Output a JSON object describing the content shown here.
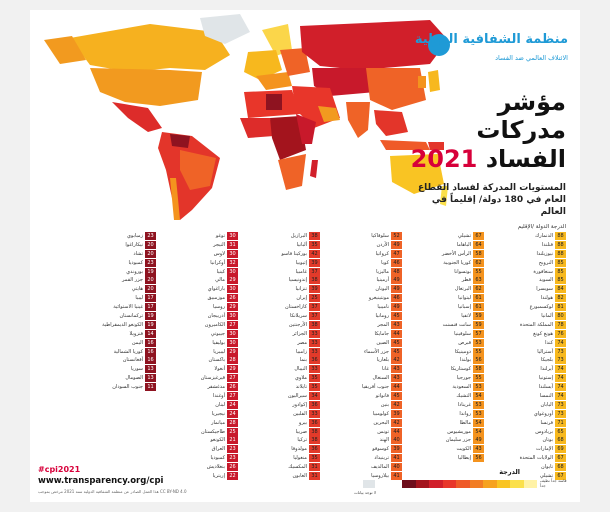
{
  "org": {
    "name": "منظمة الشفافية الدولية",
    "tagline": "الائتلاف العالمي ضد الفساد"
  },
  "title": {
    "line1": "مؤشر",
    "line2": "مدركات",
    "line3_word": "الفساد",
    "year": "2021"
  },
  "subtitle": "المستويات المدركة لفساد القطاع العام في 180 دولة/ إقليماً في العالم",
  "columns_header": "الدرجة   الدولة /الإقليم",
  "hashtag": "#cpi2021",
  "url": "www.transparency.org/cpi",
  "license": "هذا العمل الصادر عن منظمة الشفافية الدولية سنة 2021 مرخص بموجب CC BY-ND 4.0",
  "legend": {
    "title": "الدرجة",
    "left_label": "لا توجد بيانات",
    "right_label": "فاسد جداً   نظيف جداً",
    "colors": [
      "#6e0e1c",
      "#a3141d",
      "#d11f2a",
      "#e8362a",
      "#ef5a28",
      "#f27d24",
      "#f6a21f",
      "#f9c423",
      "#fbe04b",
      "#fff2a6"
    ]
  },
  "score_colors": {
    "high": "#f7b81e",
    "mid_high": "#f4931e",
    "mid": "#ef6327",
    "mid_low": "#e23a2a",
    "low": "#c8192b",
    "very_low": "#8e1320"
  },
  "columns": [
    {
      "tier": "high",
      "rows": [
        {
          "name": "الدنمارك",
          "score": "88"
        },
        {
          "name": "فنلندا",
          "score": "88"
        },
        {
          "name": "نيوزيلندا",
          "score": "88"
        },
        {
          "name": "النرويج",
          "score": "85"
        },
        {
          "name": "سنغافورة",
          "score": "85"
        },
        {
          "name": "السويد",
          "score": "85"
        },
        {
          "name": "سويسرا",
          "score": "84"
        },
        {
          "name": "هولندا",
          "score": "82"
        },
        {
          "name": "لوكسمبورغ",
          "score": "81"
        },
        {
          "name": "ألمانيا",
          "score": "80"
        },
        {
          "name": "المملكة المتحدة",
          "score": "78"
        },
        {
          "name": "هونغ كونغ",
          "score": "76"
        },
        {
          "name": "كندا",
          "score": "74"
        },
        {
          "name": "أستراليا",
          "score": "73"
        },
        {
          "name": "بلجيكا",
          "score": "73"
        },
        {
          "name": "آيرلندا",
          "score": "74"
        },
        {
          "name": "إستونيا",
          "score": "74"
        },
        {
          "name": "آيسلندا",
          "score": "74"
        },
        {
          "name": "النمسا",
          "score": "74"
        },
        {
          "name": "اليابان",
          "score": "73"
        },
        {
          "name": "أوروغواي",
          "score": "73"
        },
        {
          "name": "فرنسا",
          "score": "71"
        },
        {
          "name": "بربادوس",
          "score": "65"
        },
        {
          "name": "بوتان",
          "score": "68"
        },
        {
          "name": "الإمارات",
          "score": "69"
        },
        {
          "name": "الولايات المتحدة",
          "score": "67"
        },
        {
          "name": "تايوان",
          "score": "68"
        },
        {
          "name": "تشيلي",
          "score": "67"
        }
      ]
    },
    {
      "tier": "mid_high",
      "rows": [
        {
          "name": "تشيلي",
          "score": "67"
        },
        {
          "name": "الباهاما",
          "score": "64"
        },
        {
          "name": "الرأس الأخضر",
          "score": "58"
        },
        {
          "name": "كوريا الجنوبية",
          "score": "62"
        },
        {
          "name": "بوتسوانا",
          "score": "55"
        },
        {
          "name": "قطر",
          "score": "63"
        },
        {
          "name": "البرتغال",
          "score": "62"
        },
        {
          "name": "ليتوانيا",
          "score": "61"
        },
        {
          "name": "إسبانيا",
          "score": "61"
        },
        {
          "name": "لاتفيا",
          "score": "59"
        },
        {
          "name": "سانت فنسنت",
          "score": "59"
        },
        {
          "name": "سلوفينيا",
          "score": "57"
        },
        {
          "name": "قبرص",
          "score": "53"
        },
        {
          "name": "دومينيكا",
          "score": "55"
        },
        {
          "name": "بولندا",
          "score": "56"
        },
        {
          "name": "كوستاريكا",
          "score": "58"
        },
        {
          "name": "جورجيا",
          "score": "55"
        },
        {
          "name": "السعودية",
          "score": "53"
        },
        {
          "name": "التشيك",
          "score": "54"
        },
        {
          "name": "غرينادا",
          "score": "53"
        },
        {
          "name": "رواندا",
          "score": "53"
        },
        {
          "name": "مالطا",
          "score": "54"
        },
        {
          "name": "موريشيوس",
          "score": "54"
        },
        {
          "name": "جزر سليمان",
          "score": "49"
        },
        {
          "name": "الكويت",
          "score": "43"
        },
        {
          "name": "إيطاليا",
          "score": "56"
        }
      ]
    },
    {
      "tier": "mid",
      "rows": [
        {
          "name": "سلوفاكيا",
          "score": "52"
        },
        {
          "name": "الأردن",
          "score": "49"
        },
        {
          "name": "كرواتيا",
          "score": "47"
        },
        {
          "name": "كوبا",
          "score": "46"
        },
        {
          "name": "ماليزيا",
          "score": "48"
        },
        {
          "name": "أرمينيا",
          "score": "49"
        },
        {
          "name": "اليونان",
          "score": "49"
        },
        {
          "name": "مونتينيغرو",
          "score": "46"
        },
        {
          "name": "ناميبيا",
          "score": "49"
        },
        {
          "name": "رومانيا",
          "score": "45"
        },
        {
          "name": "المجر",
          "score": "43"
        },
        {
          "name": "جامايكا",
          "score": "44"
        },
        {
          "name": "الصين",
          "score": "45"
        },
        {
          "name": "جزر الأسماء",
          "score": "45"
        },
        {
          "name": "بلغاريا",
          "score": "42"
        },
        {
          "name": "غانا",
          "score": "43"
        },
        {
          "name": "السنغال",
          "score": "43"
        },
        {
          "name": "جنوب أفريقيا",
          "score": "44"
        },
        {
          "name": "فانواتو",
          "score": "45"
        },
        {
          "name": "بنين",
          "score": "42"
        },
        {
          "name": "كولومبيا",
          "score": "39"
        },
        {
          "name": "البحرين",
          "score": "42"
        },
        {
          "name": "تونس",
          "score": "44"
        },
        {
          "name": "الهند",
          "score": "40"
        },
        {
          "name": "كوسوفو",
          "score": "39"
        },
        {
          "name": "ترينيداد",
          "score": "41"
        },
        {
          "name": "المالديف",
          "score": "40"
        },
        {
          "name": "بيلاروسيا",
          "score": "41"
        }
      ]
    },
    {
      "tier": "mid_low",
      "rows": [
        {
          "name": "البرازيل",
          "score": "38"
        },
        {
          "name": "ألبانيا",
          "score": "35"
        },
        {
          "name": "بوركينا فاسو",
          "score": "42"
        },
        {
          "name": "إثيوبيا",
          "score": "39"
        },
        {
          "name": "غامبيا",
          "score": "37"
        },
        {
          "name": "إندونيسيا",
          "score": "38"
        },
        {
          "name": "تنزانيا",
          "score": "39"
        },
        {
          "name": "إيران",
          "score": "25"
        },
        {
          "name": "كازاخستان",
          "score": "37"
        },
        {
          "name": "سريلانكا",
          "score": "37"
        },
        {
          "name": "الأرجنتين",
          "score": "38"
        },
        {
          "name": "الجزائر",
          "score": "33"
        },
        {
          "name": "مصر",
          "score": "33"
        },
        {
          "name": "زامبيا",
          "score": "33"
        },
        {
          "name": "بنما",
          "score": "36"
        },
        {
          "name": "النيبال",
          "score": "33"
        },
        {
          "name": "ملاوي",
          "score": "35"
        },
        {
          "name": "تايلاند",
          "score": "35"
        },
        {
          "name": "سيراليون",
          "score": "34"
        },
        {
          "name": "إكوادور",
          "score": "36"
        },
        {
          "name": "الفلبين",
          "score": "33"
        },
        {
          "name": "بيرو",
          "score": "36"
        },
        {
          "name": "صربيا",
          "score": "38"
        },
        {
          "name": "تركيا",
          "score": "38"
        },
        {
          "name": "مولدوفا",
          "score": "36"
        },
        {
          "name": "منغوليا",
          "score": "35"
        },
        {
          "name": "المكسيك",
          "score": "31"
        },
        {
          "name": "الغابون",
          "score": "31"
        }
      ]
    },
    {
      "tier": "low",
      "rows": [
        {
          "name": "توغو",
          "score": "30"
        },
        {
          "name": "النيجر",
          "score": "31"
        },
        {
          "name": "لاوس",
          "score": "30"
        },
        {
          "name": "أوكرانيا",
          "score": "32"
        },
        {
          "name": "كينيا",
          "score": "30"
        },
        {
          "name": "مالي",
          "score": "29"
        },
        {
          "name": "باراغواي",
          "score": "30"
        },
        {
          "name": "موزمبيق",
          "score": "26"
        },
        {
          "name": "روسيا",
          "score": "29"
        },
        {
          "name": "أذربيجان",
          "score": "30"
        },
        {
          "name": "الكاميرون",
          "score": "27"
        },
        {
          "name": "جيبوتي",
          "score": "30"
        },
        {
          "name": "بوليفيا",
          "score": "30"
        },
        {
          "name": "ليبيريا",
          "score": "29"
        },
        {
          "name": "باكستان",
          "score": "28"
        },
        {
          "name": "أنغولا",
          "score": "29"
        },
        {
          "name": "قيرغيزستان",
          "score": "27"
        },
        {
          "name": "مدغشقر",
          "score": "26"
        },
        {
          "name": "أوغندا",
          "score": "27"
        },
        {
          "name": "لبنان",
          "score": "24"
        },
        {
          "name": "نيجيريا",
          "score": "24"
        },
        {
          "name": "ميانمار",
          "score": "28"
        },
        {
          "name": "طاجيكستان",
          "score": "25"
        },
        {
          "name": "الكونغو",
          "score": "21"
        },
        {
          "name": "العراق",
          "score": "23"
        },
        {
          "name": "كمبوديا",
          "score": "23"
        },
        {
          "name": "بنغلاديش",
          "score": "26"
        },
        {
          "name": "إريتريا",
          "score": "22"
        }
      ]
    },
    {
      "tier": "very_low",
      "rows": [
        {
          "name": "زمبابوي",
          "score": "23"
        },
        {
          "name": "نيكاراغوا",
          "score": "20"
        },
        {
          "name": "تشاد",
          "score": "20"
        },
        {
          "name": "كمبوديا",
          "score": "23"
        },
        {
          "name": "بوروندي",
          "score": "19"
        },
        {
          "name": "جزر القمر",
          "score": "20"
        },
        {
          "name": "هايتي",
          "score": "20"
        },
        {
          "name": "ليبيا",
          "score": "17"
        },
        {
          "name": "غينيا الاستوائية",
          "score": "17"
        },
        {
          "name": "تركمانستان",
          "score": "19"
        },
        {
          "name": "الكونغو الديمقراطية",
          "score": "19"
        },
        {
          "name": "فنزويلا",
          "score": "14"
        },
        {
          "name": "اليمن",
          "score": "16"
        },
        {
          "name": "كوريا الشمالية",
          "score": "16"
        },
        {
          "name": "أفغانستان",
          "score": "16"
        },
        {
          "name": "سوريا",
          "score": "13"
        },
        {
          "name": "الصومال",
          "score": "13"
        },
        {
          "name": "جنوب السودان",
          "score": "11"
        }
      ]
    }
  ]
}
